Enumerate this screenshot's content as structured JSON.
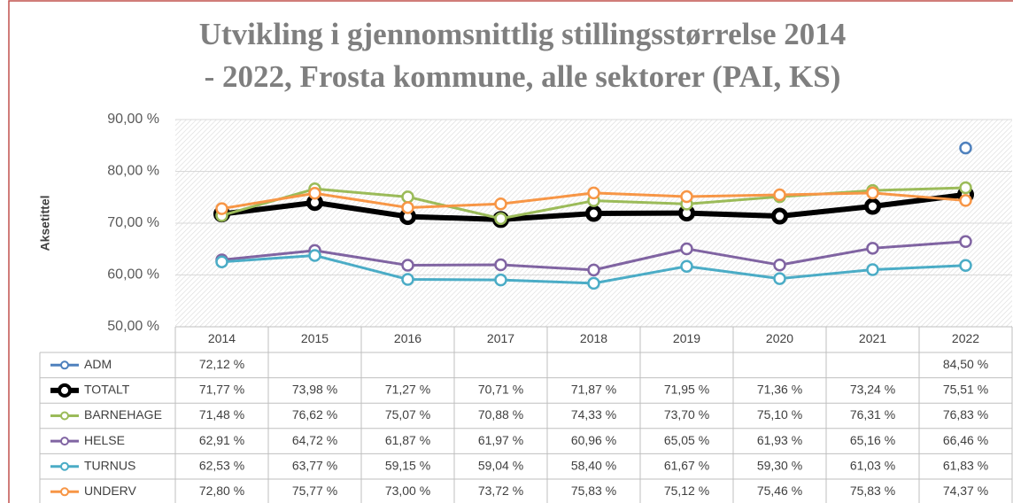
{
  "chart_data": {
    "type": "line",
    "title": [
      "Utvikling i gjennomsnittlig stillingsstørrelse 2014",
      "- 2022, Frosta kommune, alle sektorer (PAI, KS)"
    ],
    "y_label": "Aksetittel",
    "categories": [
      "2014",
      "2015",
      "2016",
      "2017",
      "2018",
      "2019",
      "2020",
      "2021",
      "2022"
    ],
    "ylim": [
      50,
      90
    ],
    "yticks": [
      {
        "value": 50,
        "label": "50,00 %"
      },
      {
        "value": 60,
        "label": "60,00 %"
      },
      {
        "value": 70,
        "label": "70,00 %"
      },
      {
        "value": 80,
        "label": "80,00 %"
      },
      {
        "value": 90,
        "label": "90,00 %"
      }
    ],
    "grid": true,
    "series": [
      {
        "name": "ADM",
        "color": "#4f81bd",
        "values": [
          72.12,
          null,
          null,
          null,
          null,
          null,
          null,
          null,
          84.5
        ],
        "value_labels": [
          "72,12 %",
          null,
          null,
          null,
          null,
          null,
          null,
          null,
          "84,50 %"
        ]
      },
      {
        "name": "TOTALT",
        "color": "#000000",
        "values": [
          71.77,
          73.98,
          71.27,
          70.71,
          71.87,
          71.95,
          71.36,
          73.24,
          75.51
        ],
        "value_labels": [
          "71,77 %",
          "73,98 %",
          "71,27 %",
          "70,71 %",
          "71,87 %",
          "71,95 %",
          "71,36 %",
          "73,24 %",
          "75,51 %"
        ]
      },
      {
        "name": "BARNEHAGE",
        "color": "#9bbb59",
        "values": [
          71.48,
          76.62,
          75.07,
          70.88,
          74.33,
          73.7,
          75.1,
          76.31,
          76.83
        ],
        "value_labels": [
          "71,48 %",
          "76,62 %",
          "75,07 %",
          "70,88 %",
          "74,33 %",
          "73,70 %",
          "75,10 %",
          "76,31 %",
          "76,83 %"
        ]
      },
      {
        "name": "HELSE",
        "color": "#8064a2",
        "values": [
          62.91,
          64.72,
          61.87,
          61.97,
          60.96,
          65.05,
          61.93,
          65.16,
          66.46
        ],
        "value_labels": [
          "62,91 %",
          "64,72 %",
          "61,87 %",
          "61,97 %",
          "60,96 %",
          "65,05 %",
          "61,93 %",
          "65,16 %",
          "66,46 %"
        ]
      },
      {
        "name": "TURNUS",
        "color": "#4bacc6",
        "values": [
          62.53,
          63.77,
          59.15,
          59.04,
          58.4,
          61.67,
          59.3,
          61.03,
          61.83
        ],
        "value_labels": [
          "62,53 %",
          "63,77 %",
          "59,15 %",
          "59,04 %",
          "58,40 %",
          "61,67 %",
          "59,30 %",
          "61,03 %",
          "61,83 %"
        ]
      },
      {
        "name": "UNDERV",
        "color": "#f79646",
        "values": [
          72.8,
          75.77,
          73.0,
          73.72,
          75.83,
          75.12,
          75.46,
          75.83,
          74.37
        ],
        "value_labels": [
          "72,80 %",
          "75,77 %",
          "73,00 %",
          "73,72 %",
          "75,83 %",
          "75,12 %",
          "75,46 %",
          "75,83 %",
          "74,37 %"
        ]
      }
    ]
  }
}
